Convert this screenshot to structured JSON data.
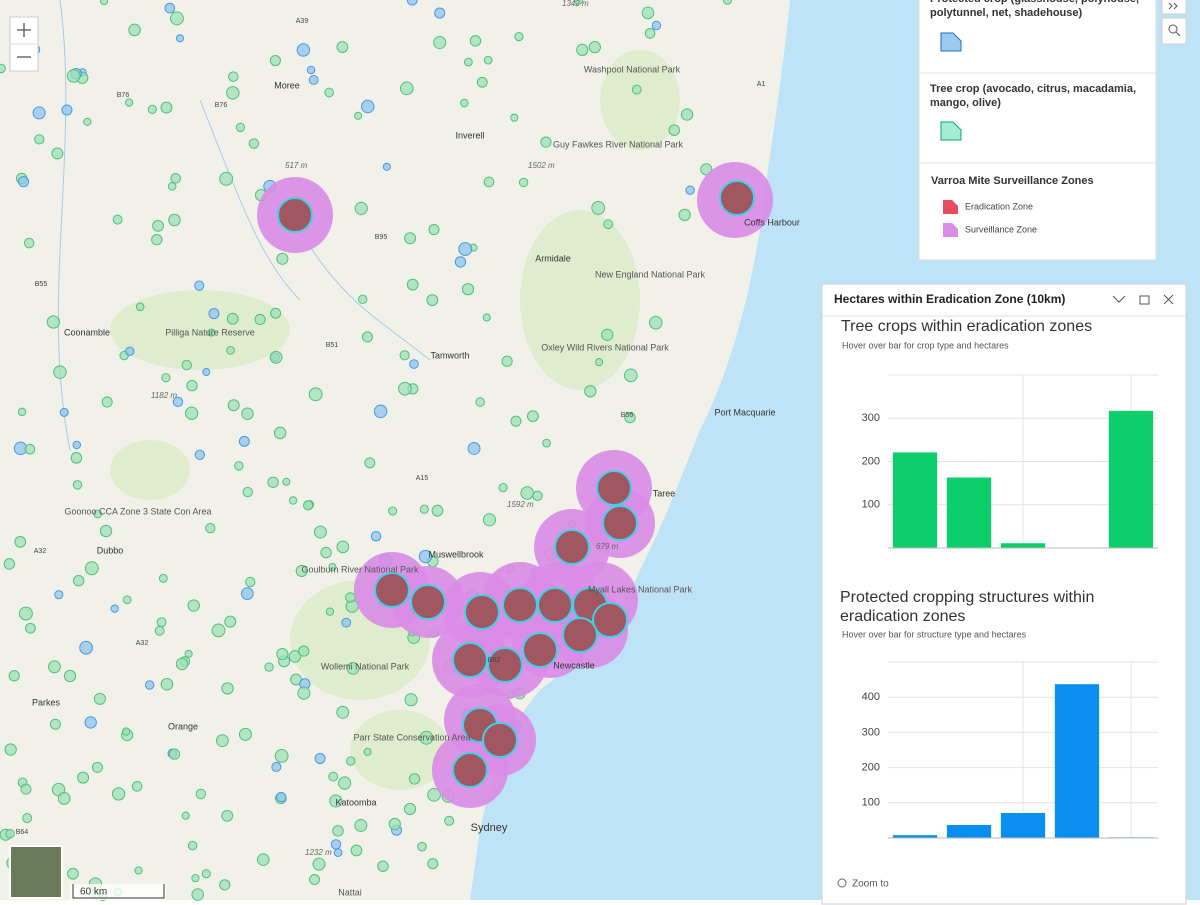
{
  "map": {
    "places": [
      "Moree",
      "Inverell",
      "Washpool National Park",
      "Guy Fawkes River National Park",
      "Coffs Harbour",
      "Armidale",
      "New England National Park",
      "Coonamble",
      "Pilliga Nature Reserve",
      "Tamworth",
      "Oxley Wild Rivers National Park",
      "Port Macquarie",
      "Taree",
      "Goonoo CCA Zone 3 State Con Area",
      "Dubbo",
      "Muswellbrook",
      "Goulburn River National Park",
      "Myall Lakes National Park",
      "Newcastle",
      "Wollemi National Park",
      "Parkes",
      "Orange",
      "Parr State Conservation Area",
      "Katoomba",
      "Sydney",
      "Nattai"
    ],
    "roads": [
      "A39",
      "B76",
      "B76",
      "B95",
      "B55",
      "B51",
      "A15",
      "B56",
      "A1",
      "A32",
      "A32",
      "B64",
      "B82"
    ],
    "elevations": [
      "517 m",
      "1502 m",
      "1182 m",
      "1592 m",
      "679 m",
      "1232 m",
      "1342 m"
    ],
    "scale": "60 km"
  },
  "legend": {
    "protected_crop": "Protected crop (glasshouse, polyhouse, polytunnel, net, shadehouse)",
    "tree_crop": "Tree crop (avocado, citrus, macadamia, mango, olive)",
    "zones_title": "Varroa Mite Surveillance Zones",
    "eradication": "Eradication Zone",
    "surveillance": "Surveillance Zone"
  },
  "panel": {
    "title": "Hectares within Eradication Zone (10km)",
    "zoom_to": "Zoom to"
  },
  "chart_data": [
    {
      "type": "bar",
      "title": "Tree crops within eradication zones",
      "subtitle": "Hover over bar for crop type and hectares",
      "categories": [
        null,
        null,
        null,
        null,
        null
      ],
      "values": [
        221,
        163,
        11,
        1,
        317
      ],
      "color": "#0ccf6b",
      "ylim": [
        0,
        400
      ],
      "yticks": [
        100,
        200,
        300
      ],
      "grid": true
    },
    {
      "type": "bar",
      "title": "Protected cropping structures within eradication zones",
      "subtitle": "Hover over bar for structure type and hectares",
      "categories": [
        null,
        null,
        null,
        null,
        null
      ],
      "values": [
        8,
        37,
        71,
        437,
        2
      ],
      "color": "#0a8ff0",
      "ylim": [
        0,
        500
      ],
      "yticks": [
        100,
        200,
        300,
        400
      ],
      "grid": true
    }
  ]
}
